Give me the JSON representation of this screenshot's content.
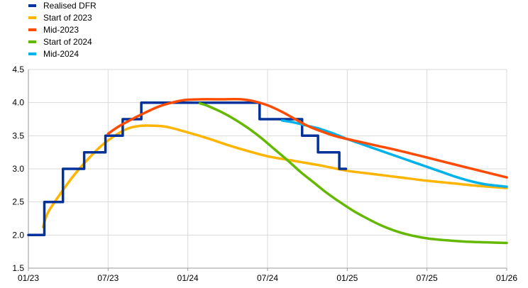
{
  "chart_data": {
    "type": "line",
    "title": "",
    "xlabel": "",
    "ylabel": "",
    "ylim": [
      1.5,
      4.5
    ],
    "yticks": [
      "1.5",
      "2.0",
      "2.5",
      "3.0",
      "3.5",
      "4.0",
      "4.5"
    ],
    "ytick_values": [
      1.5,
      2.0,
      2.5,
      3.0,
      3.5,
      4.0,
      4.5
    ],
    "xlim": [
      0,
      36
    ],
    "x_unit": "months since 01/23",
    "xticks": [
      "01/23",
      "07/23",
      "01/24",
      "07/24",
      "01/25",
      "07/25",
      "01/26"
    ],
    "xtick_values": [
      0,
      6,
      12,
      18,
      24,
      30,
      36
    ],
    "legend_position": "top-left",
    "grid": true,
    "series": [
      {
        "name": "Realised DFR",
        "color": "#003299",
        "step": true,
        "points": [
          [
            0,
            2.0
          ],
          [
            1.2,
            2.0
          ],
          [
            1.2,
            2.5
          ],
          [
            2.6,
            2.5
          ],
          [
            2.6,
            3.0
          ],
          [
            4.2,
            3.0
          ],
          [
            4.2,
            3.25
          ],
          [
            5.8,
            3.25
          ],
          [
            5.8,
            3.5
          ],
          [
            7.1,
            3.5
          ],
          [
            7.1,
            3.75
          ],
          [
            8.5,
            3.75
          ],
          [
            8.5,
            4.0
          ],
          [
            17.4,
            4.0
          ],
          [
            17.4,
            3.75
          ],
          [
            20.6,
            3.75
          ],
          [
            20.6,
            3.5
          ],
          [
            21.8,
            3.5
          ],
          [
            21.8,
            3.25
          ],
          [
            23.4,
            3.25
          ],
          [
            23.4,
            3.0
          ],
          [
            23.9,
            3.0
          ]
        ]
      },
      {
        "name": "Start of 2023",
        "color": "#ffb400",
        "points": [
          [
            1.1,
            2.12
          ],
          [
            1.5,
            2.35
          ],
          [
            2.5,
            2.65
          ],
          [
            3.5,
            2.92
          ],
          [
            4.5,
            3.15
          ],
          [
            5.5,
            3.35
          ],
          [
            6.5,
            3.5
          ],
          [
            7.5,
            3.61
          ],
          [
            8.5,
            3.65
          ],
          [
            9.5,
            3.65
          ],
          [
            10.5,
            3.63
          ],
          [
            12,
            3.55
          ],
          [
            13.5,
            3.46
          ],
          [
            15,
            3.36
          ],
          [
            16.5,
            3.27
          ],
          [
            18,
            3.19
          ],
          [
            20,
            3.12
          ],
          [
            22,
            3.05
          ],
          [
            24,
            2.97
          ],
          [
            26,
            2.92
          ],
          [
            28,
            2.87
          ],
          [
            30,
            2.82
          ],
          [
            32,
            2.78
          ],
          [
            34,
            2.74
          ],
          [
            36,
            2.71
          ]
        ]
      },
      {
        "name": "Mid-2023",
        "color": "#ff4b00",
        "points": [
          [
            6.0,
            3.53
          ],
          [
            6.8,
            3.64
          ],
          [
            7.8,
            3.75
          ],
          [
            8.8,
            3.85
          ],
          [
            9.8,
            3.94
          ],
          [
            10.8,
            4.0
          ],
          [
            11.8,
            4.04
          ],
          [
            13,
            4.05
          ],
          [
            14.5,
            4.05
          ],
          [
            16,
            4.05
          ],
          [
            17,
            4.02
          ],
          [
            18,
            3.96
          ],
          [
            19,
            3.87
          ],
          [
            20,
            3.76
          ],
          [
            21,
            3.65
          ],
          [
            22,
            3.57
          ],
          [
            23,
            3.5
          ],
          [
            24,
            3.45
          ],
          [
            26,
            3.36
          ],
          [
            28,
            3.27
          ],
          [
            30,
            3.17
          ],
          [
            32,
            3.07
          ],
          [
            34,
            2.97
          ],
          [
            36,
            2.87
          ]
        ]
      },
      {
        "name": "Start of 2024",
        "color": "#65b800",
        "points": [
          [
            12.9,
            3.99
          ],
          [
            13.5,
            3.95
          ],
          [
            14.5,
            3.86
          ],
          [
            15.5,
            3.75
          ],
          [
            16.5,
            3.62
          ],
          [
            17.5,
            3.47
          ],
          [
            18.5,
            3.3
          ],
          [
            19.5,
            3.13
          ],
          [
            20.5,
            2.95
          ],
          [
            21.5,
            2.79
          ],
          [
            22.5,
            2.63
          ],
          [
            23.5,
            2.49
          ],
          [
            24.5,
            2.36
          ],
          [
            25.5,
            2.25
          ],
          [
            26.5,
            2.15
          ],
          [
            27.5,
            2.07
          ],
          [
            28.5,
            2.01
          ],
          [
            30,
            1.95
          ],
          [
            31.5,
            1.92
          ],
          [
            33,
            1.9
          ],
          [
            34.5,
            1.89
          ],
          [
            36,
            1.88
          ]
        ]
      },
      {
        "name": "Mid-2024",
        "color": "#00b1ea",
        "points": [
          [
            19.1,
            3.73
          ],
          [
            20,
            3.7
          ],
          [
            21,
            3.65
          ],
          [
            22,
            3.6
          ],
          [
            23,
            3.53
          ],
          [
            24,
            3.45
          ],
          [
            25,
            3.38
          ],
          [
            26,
            3.31
          ],
          [
            27,
            3.24
          ],
          [
            28,
            3.17
          ],
          [
            29,
            3.1
          ],
          [
            30,
            3.03
          ],
          [
            31,
            2.96
          ],
          [
            32,
            2.89
          ],
          [
            33,
            2.83
          ],
          [
            34,
            2.78
          ],
          [
            35,
            2.75
          ],
          [
            36,
            2.73
          ]
        ]
      }
    ]
  }
}
